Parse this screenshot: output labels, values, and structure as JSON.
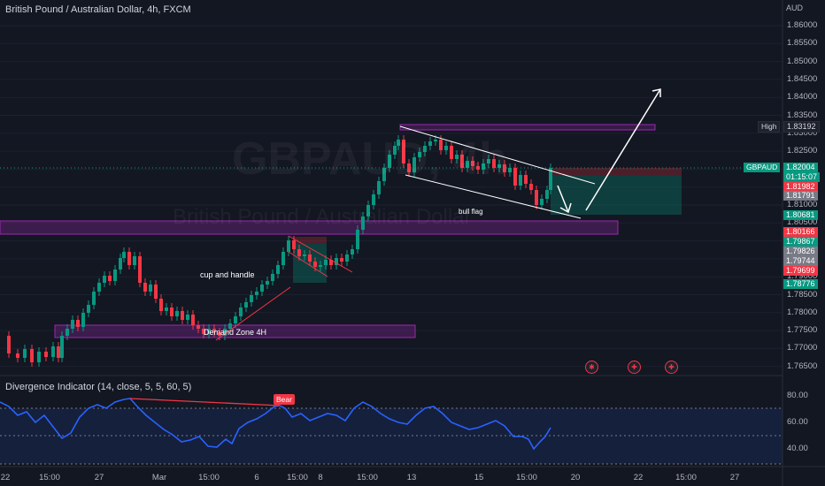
{
  "header": {
    "symbol_title": "British Pound / Australian Dollar, 4h, FXCM"
  },
  "watermark": {
    "symbol": "GBPAUD, 4h",
    "name": "British Pound / Australian Dollar"
  },
  "price_axis": {
    "currency": "AUD",
    "ticks": [
      "1.86000",
      "1.85500",
      "1.85000",
      "1.84500",
      "1.84000",
      "1.83500",
      "1.83000",
      "1.82500",
      "1.82000",
      "1.81500",
      "1.81000",
      "1.80500",
      "1.80000",
      "1.79500",
      "1.79000",
      "1.78500",
      "1.78000",
      "1.77500",
      "1.77000",
      "1.76500"
    ]
  },
  "price_tags": {
    "high_label": "High",
    "high_value": "1.83192",
    "symbol_label": "GBPAUD",
    "current_price": "1.82004",
    "countdown": "01:15:07",
    "levels": [
      {
        "value": "1.81982",
        "color": "#f23645"
      },
      {
        "value": "1.81791",
        "color": "#787b86"
      },
      {
        "value": "1.80681",
        "color": "#089981"
      },
      {
        "value": "1.80166",
        "color": "#f23645"
      },
      {
        "value": "1.79867",
        "color": "#089981"
      },
      {
        "value": "1.79826",
        "color": "#787b86"
      },
      {
        "value": "1.79744",
        "color": "#787b86"
      },
      {
        "value": "1.79699",
        "color": "#f23645"
      },
      {
        "value": "1.78776",
        "color": "#089981"
      }
    ]
  },
  "annotations": {
    "cup_and_handle": "cup and handle",
    "demand_zone": "Demand Zone 4H",
    "bull_flag": "bull flag"
  },
  "indicator": {
    "title": "Divergence Indicator (14, close, 5, 5, 60, 5)",
    "bear_label": "Bear",
    "ticks": [
      "80.00",
      "60.00",
      "40.00"
    ]
  },
  "time_axis": {
    "ticks": [
      "22",
      "15:00",
      "27",
      "Mar",
      "15:00",
      "6",
      "15:00",
      "8",
      "15:00",
      "13",
      "15",
      "15:00",
      "20",
      "22",
      "15:00",
      "27"
    ]
  },
  "event_icons": [
    "au-flag-icon",
    "uk-flag-icon",
    "uk-flag-icon"
  ],
  "colors": {
    "bull": "#089981",
    "bear": "#f23645",
    "zone": "#9c27b0",
    "rsi": "#2962ff",
    "background": "#131722"
  }
}
